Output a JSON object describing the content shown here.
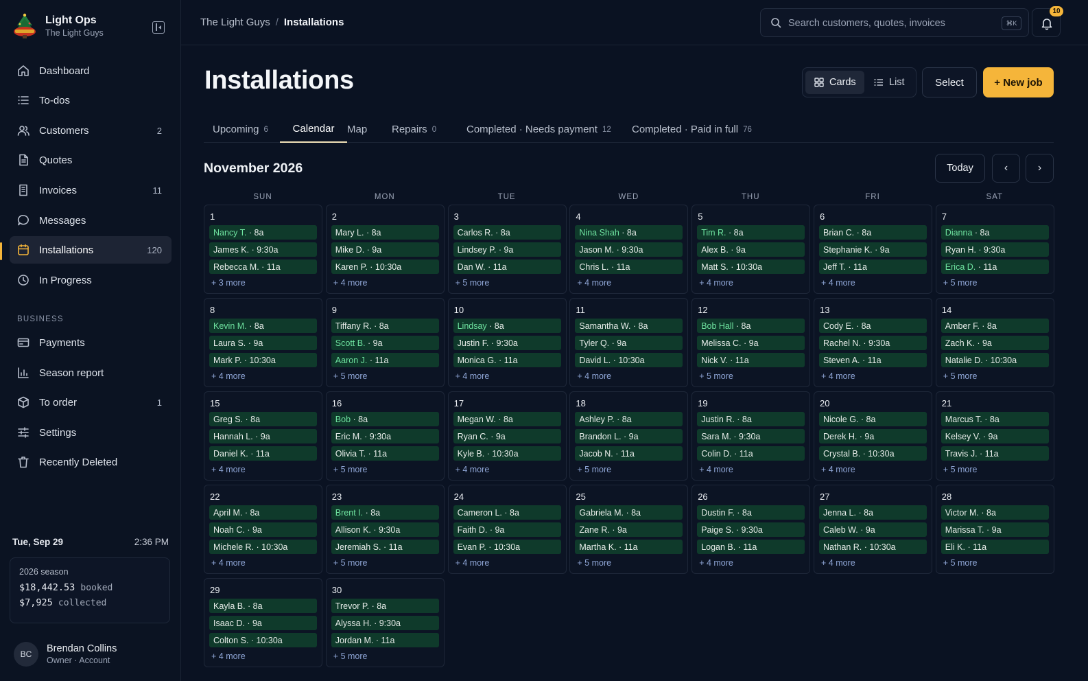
{
  "brand": {
    "name": "Light Ops",
    "sub": "The Light Guys"
  },
  "nav": [
    {
      "label": "Dashboard",
      "icon": "home-icon",
      "count": ""
    },
    {
      "label": "To-dos",
      "icon": "list-icon",
      "count": ""
    },
    {
      "label": "Customers",
      "icon": "users-icon",
      "count": "2"
    },
    {
      "label": "Quotes",
      "icon": "document-icon",
      "count": ""
    },
    {
      "label": "Invoices",
      "icon": "receipt-icon",
      "count": "11"
    },
    {
      "label": "Messages",
      "icon": "message-icon",
      "count": ""
    },
    {
      "label": "Installations",
      "icon": "calendar-icon",
      "count": "120"
    },
    {
      "label": "In Progress",
      "icon": "clock-icon",
      "count": ""
    }
  ],
  "business_label": "BUSINESS",
  "business_nav": [
    {
      "label": "Payments",
      "icon": "card-icon",
      "count": ""
    },
    {
      "label": "Season report",
      "icon": "bar-chart-icon",
      "count": ""
    },
    {
      "label": "To order",
      "icon": "box-icon",
      "count": "1"
    },
    {
      "label": "Settings",
      "icon": "sliders-icon",
      "count": ""
    },
    {
      "label": "Recently Deleted",
      "icon": "trash-icon",
      "count": ""
    }
  ],
  "datetime": {
    "date": "Tue, Sep 29",
    "time": "2:36 PM"
  },
  "season": {
    "title": "2026 season",
    "booked": "$18,442.53",
    "booked_unit": "booked",
    "collected": "$7,925",
    "collected_unit": "collected"
  },
  "user": {
    "initials": "BC",
    "name": "Brendan Collins",
    "role": "Owner · Account"
  },
  "breadcrumb": {
    "parent": "The Light Guys",
    "sep": "/",
    "current": "Installations"
  },
  "search": {
    "placeholder": "Search customers, quotes, invoices",
    "shortcut": "⌘K"
  },
  "notifications": {
    "count": "10"
  },
  "page": {
    "title": "Installations"
  },
  "view": {
    "cards": "Cards",
    "list": "List",
    "select": "Select",
    "new_job": "+ New job"
  },
  "tabs": [
    {
      "label": "Upcoming",
      "count": "6"
    },
    {
      "label": "Calendar",
      "count": ""
    },
    {
      "label": "Map",
      "count": ""
    },
    {
      "label": "Repairs",
      "count": "0"
    },
    {
      "label": "Completed · Needs payment",
      "count": "12"
    },
    {
      "label": "Completed · Paid in full",
      "count": "76"
    }
  ],
  "calendar": {
    "month": "November 2026",
    "today": "Today",
    "prev": "‹",
    "next": "›",
    "weekdays": [
      "SUN",
      "MON",
      "TUE",
      "WED",
      "THU",
      "FRI",
      "SAT"
    ],
    "days": [
      {
        "n": "1",
        "ev": [
          {
            "name": "Nancy T.",
            "time": " · 8a",
            "hl": true
          },
          {
            "name": "James K.",
            "time": " · 9:30a"
          },
          {
            "name": "Rebecca M.",
            "time": " · 11a"
          }
        ],
        "more": "+ 3 more"
      },
      {
        "n": "2",
        "ev": [
          {
            "name": "Mary L.",
            "time": " · 8a"
          },
          {
            "name": "Mike D.",
            "time": " · 9a"
          },
          {
            "name": "Karen P.",
            "time": " · 10:30a"
          }
        ],
        "more": "+ 4 more"
      },
      {
        "n": "3",
        "ev": [
          {
            "name": "Carlos R.",
            "time": " · 8a"
          },
          {
            "name": "Lindsey P.",
            "time": " · 9a"
          },
          {
            "name": "Dan W.",
            "time": " · 11a"
          }
        ],
        "more": "+ 5 more"
      },
      {
        "n": "4",
        "ev": [
          {
            "name": "Nina Shah",
            "time": " · 8a",
            "hl": true
          },
          {
            "name": "Jason M.",
            "time": " · 9:30a"
          },
          {
            "name": "Chris L.",
            "time": " · 11a"
          }
        ],
        "more": "+ 4 more"
      },
      {
        "n": "5",
        "ev": [
          {
            "name": "Tim R.",
            "time": " · 8a",
            "hl": true
          },
          {
            "name": "Alex B.",
            "time": " · 9a"
          },
          {
            "name": "Matt S.",
            "time": " · 10:30a"
          }
        ],
        "more": "+ 4 more"
      },
      {
        "n": "6",
        "ev": [
          {
            "name": "Brian C.",
            "time": " · 8a"
          },
          {
            "name": "Stephanie K.",
            "time": " · 9a"
          },
          {
            "name": "Jeff T.",
            "time": " · 11a"
          }
        ],
        "more": "+ 4 more"
      },
      {
        "n": "7",
        "ev": [
          {
            "name": "Dianna",
            "time": " · 8a",
            "hl": true
          },
          {
            "name": "Ryan H.",
            "time": " · 9:30a"
          },
          {
            "name": "Erica D.",
            "time": " · 11a",
            "hl": true
          }
        ],
        "more": "+ 5 more"
      },
      {
        "n": "8",
        "ev": [
          {
            "name": "Kevin M.",
            "time": " · 8a",
            "hl": true
          },
          {
            "name": "Laura S.",
            "time": " · 9a"
          },
          {
            "name": "Mark P.",
            "time": " · 10:30a"
          }
        ],
        "more": "+ 4 more"
      },
      {
        "n": "9",
        "ev": [
          {
            "name": "Tiffany R.",
            "time": " · 8a"
          },
          {
            "name": "Scott B.",
            "time": " · 9a",
            "hl": true
          },
          {
            "name": "Aaron J.",
            "time": " · 11a",
            "hl": true
          }
        ],
        "more": "+ 5 more"
      },
      {
        "n": "10",
        "ev": [
          {
            "name": "Lindsay",
            "time": " · 8a",
            "hl": true
          },
          {
            "name": "Justin F.",
            "time": " · 9:30a"
          },
          {
            "name": "Monica G.",
            "time": " · 11a"
          }
        ],
        "more": "+ 4 more"
      },
      {
        "n": "11",
        "ev": [
          {
            "name": "Samantha W.",
            "time": " · 8a"
          },
          {
            "name": "Tyler Q.",
            "time": " · 9a"
          },
          {
            "name": "David L.",
            "time": " · 10:30a"
          }
        ],
        "more": "+ 4 more"
      },
      {
        "n": "12",
        "ev": [
          {
            "name": "Bob Hall",
            "time": " · 8a",
            "hl": true
          },
          {
            "name": "Melissa C.",
            "time": " · 9a"
          },
          {
            "name": "Nick V.",
            "time": " · 11a"
          }
        ],
        "more": "+ 5 more"
      },
      {
        "n": "13",
        "ev": [
          {
            "name": "Cody E.",
            "time": " · 8a"
          },
          {
            "name": "Rachel N.",
            "time": " · 9:30a"
          },
          {
            "name": "Steven A.",
            "time": " · 11a"
          }
        ],
        "more": "+ 4 more"
      },
      {
        "n": "14",
        "ev": [
          {
            "name": "Amber F.",
            "time": " · 8a"
          },
          {
            "name": "Zach K.",
            "time": " · 9a"
          },
          {
            "name": "Natalie D.",
            "time": " · 10:30a"
          }
        ],
        "more": "+ 5 more"
      },
      {
        "n": "15",
        "ev": [
          {
            "name": "Greg S.",
            "time": " · 8a"
          },
          {
            "name": "Hannah L.",
            "time": " · 9a"
          },
          {
            "name": "Daniel K.",
            "time": " · 11a"
          }
        ],
        "more": "+ 4 more"
      },
      {
        "n": "16",
        "ev": [
          {
            "name": "Bob",
            "time": " · 8a",
            "hl": true
          },
          {
            "name": "Eric M.",
            "time": " · 9:30a"
          },
          {
            "name": "Olivia T.",
            "time": " · 11a"
          }
        ],
        "more": "+ 5 more"
      },
      {
        "n": "17",
        "ev": [
          {
            "name": "Megan W.",
            "time": " · 8a"
          },
          {
            "name": "Ryan C.",
            "time": " · 9a"
          },
          {
            "name": "Kyle B.",
            "time": " · 10:30a"
          }
        ],
        "more": "+ 4 more"
      },
      {
        "n": "18",
        "ev": [
          {
            "name": "Ashley P.",
            "time": " · 8a"
          },
          {
            "name": "Brandon L.",
            "time": " · 9a"
          },
          {
            "name": "Jacob N.",
            "time": " · 11a"
          }
        ],
        "more": "+ 5 more"
      },
      {
        "n": "19",
        "ev": [
          {
            "name": "Justin R.",
            "time": " · 8a"
          },
          {
            "name": "Sara M.",
            "time": " · 9:30a"
          },
          {
            "name": "Colin D.",
            "time": " · 11a"
          }
        ],
        "more": "+ 4 more"
      },
      {
        "n": "20",
        "ev": [
          {
            "name": "Nicole G.",
            "time": " · 8a"
          },
          {
            "name": "Derek H.",
            "time": " · 9a"
          },
          {
            "name": "Crystal B.",
            "time": " · 10:30a"
          }
        ],
        "more": "+ 4 more"
      },
      {
        "n": "21",
        "ev": [
          {
            "name": "Marcus T.",
            "time": " · 8a"
          },
          {
            "name": "Kelsey V.",
            "time": " · 9a"
          },
          {
            "name": "Travis J.",
            "time": " · 11a"
          }
        ],
        "more": "+ 5 more"
      },
      {
        "n": "22",
        "ev": [
          {
            "name": "April M.",
            "time": " · 8a"
          },
          {
            "name": "Noah C.",
            "time": " · 9a"
          },
          {
            "name": "Michele R.",
            "time": " · 10:30a"
          }
        ],
        "more": "+ 4 more"
      },
      {
        "n": "23",
        "ev": [
          {
            "name": "Brent I.",
            "time": " · 8a",
            "hl": true
          },
          {
            "name": "Allison K.",
            "time": " · 9:30a"
          },
          {
            "name": "Jeremiah S.",
            "time": " · 11a"
          }
        ],
        "more": "+ 5 more"
      },
      {
        "n": "24",
        "ev": [
          {
            "name": "Cameron L.",
            "time": " · 8a"
          },
          {
            "name": "Faith D.",
            "time": " · 9a"
          },
          {
            "name": "Evan P.",
            "time": " · 10:30a"
          }
        ],
        "more": "+ 4 more"
      },
      {
        "n": "25",
        "ev": [
          {
            "name": "Gabriela M.",
            "time": " · 8a"
          },
          {
            "name": "Zane R.",
            "time": " · 9a"
          },
          {
            "name": "Martha K.",
            "time": " · 11a"
          }
        ],
        "more": "+ 5 more"
      },
      {
        "n": "26",
        "ev": [
          {
            "name": "Dustin F.",
            "time": " · 8a"
          },
          {
            "name": "Paige S.",
            "time": " · 9:30a"
          },
          {
            "name": "Logan B.",
            "time": " · 11a"
          }
        ],
        "more": "+ 4 more"
      },
      {
        "n": "27",
        "ev": [
          {
            "name": "Jenna L.",
            "time": " · 8a"
          },
          {
            "name": "Caleb W.",
            "time": " · 9a"
          },
          {
            "name": "Nathan R.",
            "time": " · 10:30a"
          }
        ],
        "more": "+ 4 more"
      },
      {
        "n": "28",
        "ev": [
          {
            "name": "Victor M.",
            "time": " · 8a"
          },
          {
            "name": "Marissa T.",
            "time": " · 9a"
          },
          {
            "name": "Eli K.",
            "time": " · 11a"
          }
        ],
        "more": "+ 5 more"
      },
      {
        "n": "29",
        "ev": [
          {
            "name": "Kayla B.",
            "time": " · 8a"
          },
          {
            "name": "Isaac D.",
            "time": " · 9a"
          },
          {
            "name": "Colton S.",
            "time": " · 10:30a"
          }
        ],
        "more": "+ 4 more"
      },
      {
        "n": "30",
        "ev": [
          {
            "name": "Trevor P.",
            "time": " · 8a"
          },
          {
            "name": "Alyssa H.",
            "time": " · 9:30a"
          },
          {
            "name": "Jordan M.",
            "time": " · 11a"
          }
        ],
        "more": "+ 5 more"
      }
    ]
  },
  "colors": {
    "accent": "#f5b53a",
    "event_bg": "#0f3a2b",
    "event_highlight": "#6fe3a0",
    "bg": "#0a1222"
  }
}
